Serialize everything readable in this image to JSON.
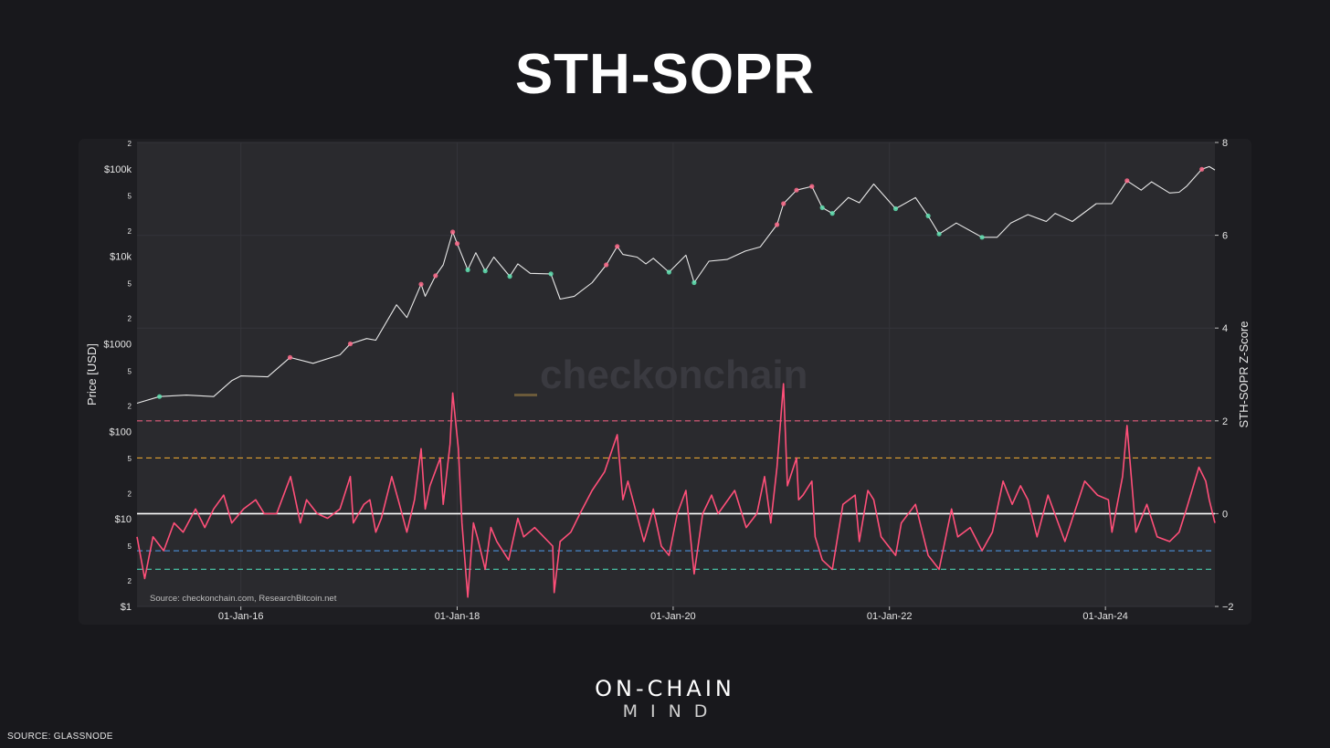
{
  "page": {
    "title": "STH-SOPR",
    "brand_line1": "ON-CHAIN",
    "brand_line2": "MIND",
    "source_note": "SOURCE: GLASSNODE"
  },
  "colors": {
    "background": "#18181c",
    "plot_background": "#2a2a2e",
    "price_line": "#e8e8e8",
    "price_profit": "#ff6b8b",
    "price_loss": "#5fe0b0",
    "zscore_line": "#ff4f79",
    "band_upper2": "#e05c7a",
    "band_upper1": "#e0a030",
    "zero_line": "#ffffff",
    "band_lower1": "#4a8fd8",
    "band_lower2": "#4ad0b0"
  },
  "chart_data": {
    "type": "line",
    "watermark": "checkonchain",
    "source_text": "Source: checkonchain.com, ResearchBitcoin.net",
    "x_ticks": [
      "01-Jan-16",
      "01-Jan-18",
      "01-Jan-20",
      "01-Jan-22",
      "01-Jan-24"
    ],
    "x_range": [
      "2015-01-15",
      "2025-01-05"
    ],
    "y_left": {
      "label": "Price [USD]",
      "scale": "log",
      "range": [
        1,
        200000
      ],
      "ticks": [
        {
          "v": 1,
          "t": "$1"
        },
        {
          "v": 2,
          "t": "2"
        },
        {
          "v": 5,
          "t": "5"
        },
        {
          "v": 10,
          "t": "$10"
        },
        {
          "v": 20,
          "t": "2"
        },
        {
          "v": 50,
          "t": "5"
        },
        {
          "v": 100,
          "t": "$100"
        },
        {
          "v": 200,
          "t": "2"
        },
        {
          "v": 500,
          "t": "5"
        },
        {
          "v": 1000,
          "t": "$1000"
        },
        {
          "v": 2000,
          "t": "2"
        },
        {
          "v": 5000,
          "t": "5"
        },
        {
          "v": 10000,
          "t": "$10k"
        },
        {
          "v": 20000,
          "t": "2"
        },
        {
          "v": 50000,
          "t": "5"
        },
        {
          "v": 100000,
          "t": "$100k"
        },
        {
          "v": 200000,
          "t": "2"
        }
      ]
    },
    "y_right": {
      "label": "STH-SOPR Z-Score",
      "scale": "linear",
      "range": [
        -2,
        8
      ],
      "ticks": [
        {
          "v": -2,
          "t": "−2"
        },
        {
          "v": 0,
          "t": "0"
        },
        {
          "v": 2,
          "t": "2"
        },
        {
          "v": 4,
          "t": "4"
        },
        {
          "v": 6,
          "t": "6"
        },
        {
          "v": 8,
          "t": "8"
        }
      ]
    },
    "bands": [
      {
        "name": "upper2",
        "value": 2.0,
        "style": "dashed"
      },
      {
        "name": "upper1",
        "value": 1.2,
        "style": "dashed"
      },
      {
        "name": "zero",
        "value": 0.0,
        "style": "solid"
      },
      {
        "name": "lower1",
        "value": -0.8,
        "style": "dashed"
      },
      {
        "name": "lower2",
        "value": -1.2,
        "style": "dashed"
      }
    ],
    "series": [
      {
        "key": "price",
        "axis": "left",
        "points": [
          [
            "2015-01-15",
            210
          ],
          [
            "2015-04-01",
            250
          ],
          [
            "2015-07-01",
            260
          ],
          [
            "2015-10-01",
            250
          ],
          [
            "2015-12-01",
            380
          ],
          [
            "2016-01-01",
            430
          ],
          [
            "2016-04-01",
            420
          ],
          [
            "2016-06-15",
            700
          ],
          [
            "2016-09-01",
            600
          ],
          [
            "2016-12-01",
            750
          ],
          [
            "2017-01-05",
            1000
          ],
          [
            "2017-03-01",
            1150
          ],
          [
            "2017-04-01",
            1100
          ],
          [
            "2017-06-10",
            2800
          ],
          [
            "2017-07-15",
            2000
          ],
          [
            "2017-09-01",
            4800
          ],
          [
            "2017-09-15",
            3500
          ],
          [
            "2017-10-20",
            6000
          ],
          [
            "2017-11-15",
            8000
          ],
          [
            "2017-12-17",
            19000
          ],
          [
            "2018-01-01",
            14000
          ],
          [
            "2018-02-06",
            7000
          ],
          [
            "2018-03-05",
            11000
          ],
          [
            "2018-04-06",
            6800
          ],
          [
            "2018-05-05",
            9800
          ],
          [
            "2018-06-28",
            5900
          ],
          [
            "2018-07-25",
            8200
          ],
          [
            "2018-09-05",
            6400
          ],
          [
            "2018-11-14",
            6300
          ],
          [
            "2018-12-15",
            3250
          ],
          [
            "2019-02-01",
            3500
          ],
          [
            "2019-04-02",
            5000
          ],
          [
            "2019-05-20",
            8000
          ],
          [
            "2019-06-26",
            13000
          ],
          [
            "2019-07-15",
            10500
          ],
          [
            "2019-09-01",
            9800
          ],
          [
            "2019-10-01",
            8200
          ],
          [
            "2019-10-26",
            9500
          ],
          [
            "2019-12-18",
            6600
          ],
          [
            "2020-02-13",
            10300
          ],
          [
            "2020-03-12",
            5000
          ],
          [
            "2020-05-01",
            8800
          ],
          [
            "2020-07-01",
            9200
          ],
          [
            "2020-09-01",
            11500
          ],
          [
            "2020-10-21",
            12800
          ],
          [
            "2020-12-17",
            23000
          ],
          [
            "2021-01-08",
            40000
          ],
          [
            "2021-02-21",
            57000
          ],
          [
            "2021-04-14",
            63000
          ],
          [
            "2021-05-19",
            36000
          ],
          [
            "2021-06-22",
            31000
          ],
          [
            "2021-08-15",
            47000
          ],
          [
            "2021-09-21",
            41000
          ],
          [
            "2021-11-09",
            67000
          ],
          [
            "2022-01-22",
            35000
          ],
          [
            "2022-03-30",
            47000
          ],
          [
            "2022-05-12",
            29000
          ],
          [
            "2022-06-18",
            18000
          ],
          [
            "2022-08-15",
            24000
          ],
          [
            "2022-11-10",
            16500
          ],
          [
            "2022-12-31",
            16500
          ],
          [
            "2023-02-15",
            24000
          ],
          [
            "2023-04-14",
            30000
          ],
          [
            "2023-06-15",
            25000
          ],
          [
            "2023-07-15",
            31000
          ],
          [
            "2023-09-11",
            25000
          ],
          [
            "2023-12-01",
            40000
          ],
          [
            "2024-01-22",
            40000
          ],
          [
            "2024-03-14",
            73000
          ],
          [
            "2024-05-01",
            57000
          ],
          [
            "2024-06-05",
            71000
          ],
          [
            "2024-08-05",
            53000
          ],
          [
            "2024-09-06",
            54000
          ],
          [
            "2024-10-01",
            63000
          ],
          [
            "2024-11-22",
            99000
          ],
          [
            "2024-12-17",
            106000
          ],
          [
            "2025-01-05",
            97000
          ]
        ]
      },
      {
        "key": "zscore",
        "axis": "right",
        "points": [
          [
            "2015-01-15",
            -0.5
          ],
          [
            "2015-02-10",
            -1.4
          ],
          [
            "2015-03-10",
            -0.5
          ],
          [
            "2015-04-15",
            -0.8
          ],
          [
            "2015-05-20",
            -0.2
          ],
          [
            "2015-06-20",
            -0.4
          ],
          [
            "2015-08-01",
            0.1
          ],
          [
            "2015-09-01",
            -0.3
          ],
          [
            "2015-10-01",
            0.1
          ],
          [
            "2015-11-04",
            0.4
          ],
          [
            "2015-12-01",
            -0.2
          ],
          [
            "2016-01-10",
            0.1
          ],
          [
            "2016-02-20",
            0.3
          ],
          [
            "2016-03-20",
            0.0
          ],
          [
            "2016-05-01",
            0.0
          ],
          [
            "2016-06-17",
            0.8
          ],
          [
            "2016-07-20",
            -0.2
          ],
          [
            "2016-08-10",
            0.3
          ],
          [
            "2016-09-15",
            0.0
          ],
          [
            "2016-10-20",
            -0.1
          ],
          [
            "2016-12-01",
            0.1
          ],
          [
            "2017-01-05",
            0.8
          ],
          [
            "2017-01-15",
            -0.2
          ],
          [
            "2017-02-20",
            0.2
          ],
          [
            "2017-03-12",
            0.3
          ],
          [
            "2017-04-01",
            -0.4
          ],
          [
            "2017-04-20",
            -0.1
          ],
          [
            "2017-05-25",
            0.8
          ],
          [
            "2017-06-20",
            0.2
          ],
          [
            "2017-07-15",
            -0.4
          ],
          [
            "2017-08-10",
            0.3
          ],
          [
            "2017-09-01",
            1.4
          ],
          [
            "2017-09-15",
            0.1
          ],
          [
            "2017-10-01",
            0.6
          ],
          [
            "2017-11-05",
            1.2
          ],
          [
            "2017-11-15",
            0.2
          ],
          [
            "2017-12-08",
            1.5
          ],
          [
            "2017-12-17",
            2.6
          ],
          [
            "2018-01-05",
            1.4
          ],
          [
            "2018-01-17",
            -0.2
          ],
          [
            "2018-02-06",
            -1.8
          ],
          [
            "2018-02-25",
            -0.2
          ],
          [
            "2018-03-10",
            -0.5
          ],
          [
            "2018-04-06",
            -1.2
          ],
          [
            "2018-04-25",
            -0.3
          ],
          [
            "2018-05-15",
            -0.6
          ],
          [
            "2018-06-24",
            -1.0
          ],
          [
            "2018-07-25",
            -0.1
          ],
          [
            "2018-08-14",
            -0.5
          ],
          [
            "2018-09-20",
            -0.3
          ],
          [
            "2018-11-20",
            -0.7
          ],
          [
            "2018-11-25",
            -1.7
          ],
          [
            "2018-12-15",
            -0.6
          ],
          [
            "2019-01-20",
            -0.4
          ],
          [
            "2019-02-20",
            0.0
          ],
          [
            "2019-04-02",
            0.5
          ],
          [
            "2019-05-14",
            0.9
          ],
          [
            "2019-06-26",
            1.7
          ],
          [
            "2019-07-15",
            0.3
          ],
          [
            "2019-08-01",
            0.7
          ],
          [
            "2019-09-24",
            -0.6
          ],
          [
            "2019-10-26",
            0.1
          ],
          [
            "2019-11-22",
            -0.7
          ],
          [
            "2019-12-18",
            -0.9
          ],
          [
            "2020-01-15",
            0.0
          ],
          [
            "2020-02-13",
            0.5
          ],
          [
            "2020-03-12",
            -1.3
          ],
          [
            "2020-04-10",
            0.0
          ],
          [
            "2020-05-10",
            0.4
          ],
          [
            "2020-06-01",
            0.0
          ],
          [
            "2020-07-27",
            0.5
          ],
          [
            "2020-09-04",
            -0.3
          ],
          [
            "2020-10-10",
            0.0
          ],
          [
            "2020-11-05",
            0.8
          ],
          [
            "2020-11-26",
            -0.2
          ],
          [
            "2020-12-17",
            1.0
          ],
          [
            "2021-01-08",
            2.8
          ],
          [
            "2021-01-21",
            0.6
          ],
          [
            "2021-02-21",
            1.2
          ],
          [
            "2021-02-28",
            0.3
          ],
          [
            "2021-03-15",
            0.4
          ],
          [
            "2021-04-14",
            0.7
          ],
          [
            "2021-04-25",
            -0.5
          ],
          [
            "2021-05-19",
            -1.0
          ],
          [
            "2021-06-22",
            -1.2
          ],
          [
            "2021-07-28",
            0.2
          ],
          [
            "2021-09-07",
            0.4
          ],
          [
            "2021-09-21",
            -0.6
          ],
          [
            "2021-10-20",
            0.5
          ],
          [
            "2021-11-09",
            0.3
          ],
          [
            "2021-12-04",
            -0.5
          ],
          [
            "2022-01-22",
            -0.9
          ],
          [
            "2022-02-10",
            -0.2
          ],
          [
            "2022-03-30",
            0.2
          ],
          [
            "2022-05-12",
            -0.9
          ],
          [
            "2022-06-18",
            -1.2
          ],
          [
            "2022-07-30",
            0.1
          ],
          [
            "2022-08-20",
            -0.5
          ],
          [
            "2022-10-01",
            -0.3
          ],
          [
            "2022-11-10",
            -0.8
          ],
          [
            "2022-12-15",
            -0.4
          ],
          [
            "2023-01-20",
            0.7
          ],
          [
            "2023-02-20",
            0.2
          ],
          [
            "2023-03-20",
            0.6
          ],
          [
            "2023-04-14",
            0.3
          ],
          [
            "2023-05-15",
            -0.5
          ],
          [
            "2023-06-21",
            0.4
          ],
          [
            "2023-08-17",
            -0.6
          ],
          [
            "2023-10-23",
            0.7
          ],
          [
            "2023-12-05",
            0.4
          ],
          [
            "2024-01-11",
            0.3
          ],
          [
            "2024-01-23",
            -0.4
          ],
          [
            "2024-02-28",
            0.8
          ],
          [
            "2024-03-14",
            1.9
          ],
          [
            "2024-04-13",
            -0.4
          ],
          [
            "2024-05-20",
            0.2
          ],
          [
            "2024-06-24",
            -0.5
          ],
          [
            "2024-08-05",
            -0.6
          ],
          [
            "2024-09-06",
            -0.4
          ],
          [
            "2024-10-01",
            0.1
          ],
          [
            "2024-11-12",
            1.0
          ],
          [
            "2024-12-05",
            0.7
          ],
          [
            "2024-12-17",
            0.3
          ],
          [
            "2025-01-05",
            -0.2
          ]
        ]
      }
    ]
  }
}
